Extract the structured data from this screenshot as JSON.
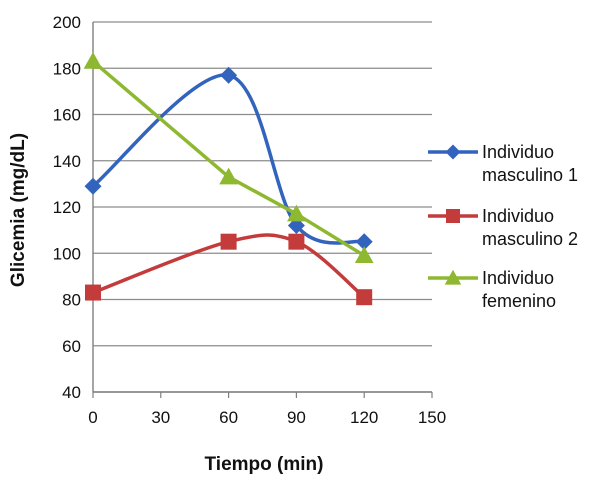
{
  "chart_data": {
    "type": "line",
    "title": "",
    "xlabel": "Tiempo (min)",
    "ylabel": "Glicemia (mg/dL)",
    "xlim": [
      0,
      150
    ],
    "ylim": [
      40,
      200
    ],
    "xticks": [
      "0",
      "30",
      "60",
      "90",
      "120",
      "150"
    ],
    "yticks": [
      "40",
      "60",
      "80",
      "100",
      "120",
      "140",
      "160",
      "180",
      "200"
    ],
    "x": [
      0,
      60,
      90,
      120
    ],
    "legend_position": "right",
    "series": [
      {
        "name": "Individuo masculino 1",
        "legend_line1": "Individuo",
        "legend_line2": "masculino 1",
        "color": "#3264BE",
        "marker": "diamond",
        "values": [
          129,
          177,
          112,
          105
        ]
      },
      {
        "name": "Individuo masculino 2",
        "legend_line1": "Individuo",
        "legend_line2": "masculino 2",
        "color": "#C43B3B",
        "marker": "square",
        "values": [
          83,
          105,
          105,
          81
        ]
      },
      {
        "name": "Individuo femenino",
        "legend_line1": "Individuo",
        "legend_line2": "femenino",
        "color": "#8DB82F",
        "marker": "triangle",
        "values": [
          183,
          133,
          117,
          99
        ]
      }
    ],
    "grid": true
  }
}
